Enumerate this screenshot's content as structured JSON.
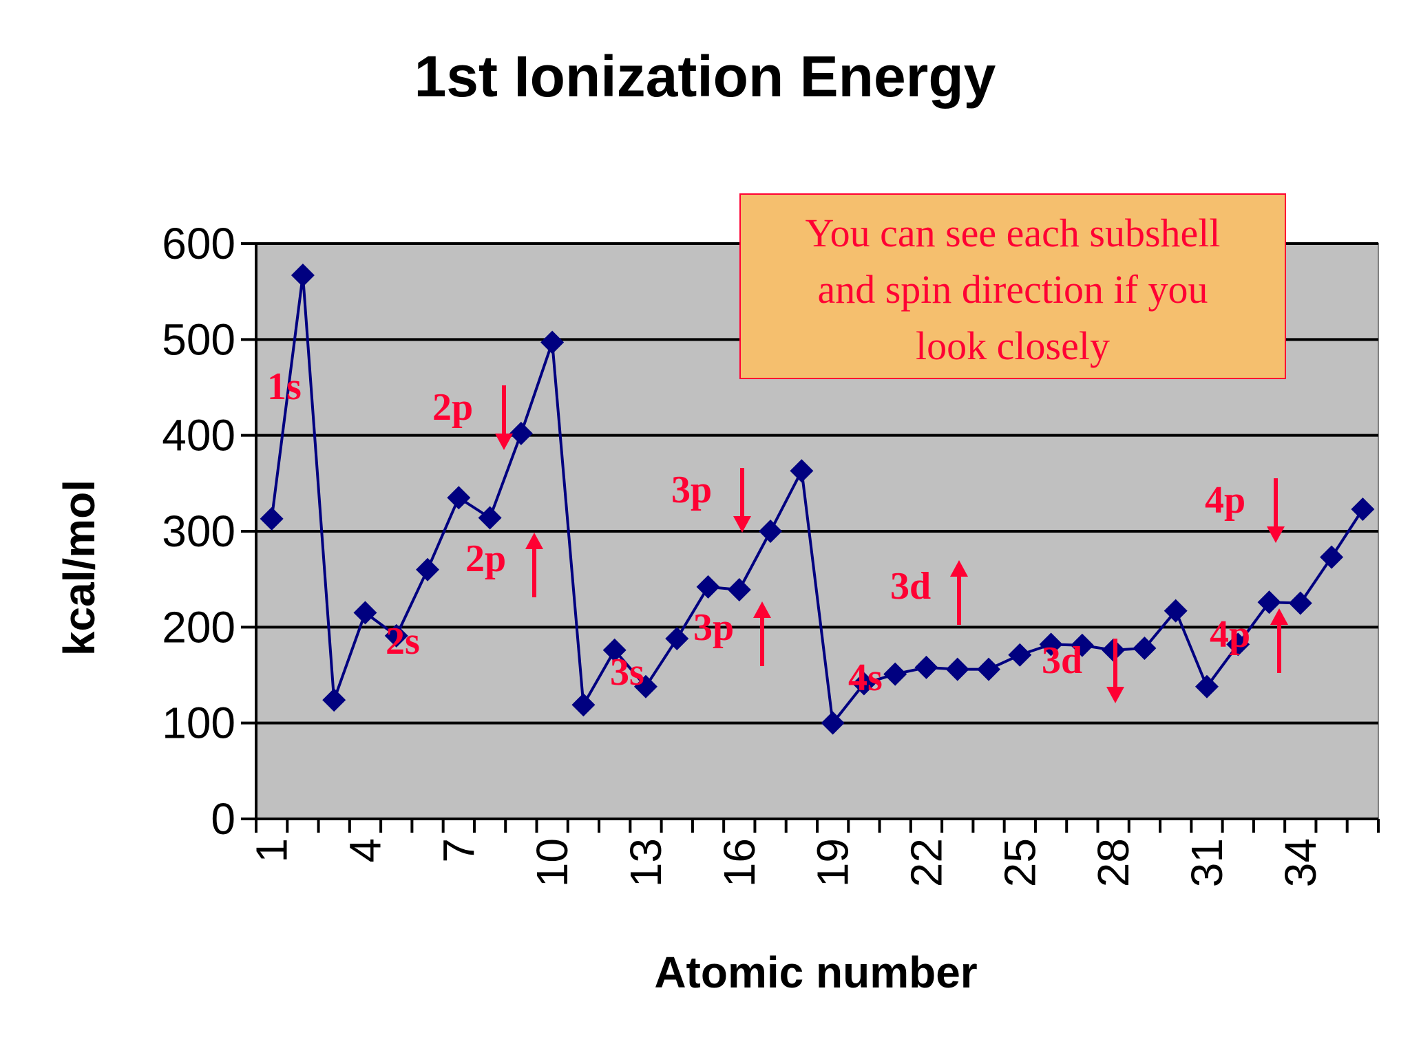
{
  "chart_data": {
    "type": "line",
    "title": "1st Ionization Energy",
    "xlabel": "Atomic number",
    "ylabel": "kcal/mol",
    "ylim": [
      0,
      600
    ],
    "yticks": [
      0,
      100,
      200,
      300,
      400,
      500,
      600
    ],
    "xticks": [
      "1",
      "4",
      "7",
      "10",
      "13",
      "16",
      "19",
      "22",
      "25",
      "28",
      "31",
      "34"
    ],
    "xlim": [
      1,
      36
    ],
    "grid": true,
    "x": [
      1,
      2,
      3,
      4,
      5,
      6,
      7,
      8,
      9,
      10,
      11,
      12,
      13,
      14,
      15,
      16,
      17,
      18,
      19,
      20,
      21,
      22,
      23,
      24,
      25,
      26,
      27,
      28,
      29,
      30,
      31,
      32,
      33,
      34,
      35,
      36
    ],
    "series": [
      {
        "values": [
          313,
          567,
          124,
          215,
          191,
          260,
          335,
          314,
          402,
          497,
          119,
          176,
          138,
          188,
          242,
          239,
          300,
          363,
          100,
          141,
          151,
          158,
          156,
          156,
          171,
          182,
          181,
          176,
          178,
          217,
          138,
          182,
          226,
          225,
          273,
          323
        ]
      }
    ],
    "annotations": [
      {
        "text": "1s"
      },
      {
        "text": "2s"
      },
      {
        "text": "2p",
        "arrow": "down"
      },
      {
        "text": "2p",
        "arrow": "up"
      },
      {
        "text": "3s"
      },
      {
        "text": "3p",
        "arrow": "down"
      },
      {
        "text": "3p",
        "arrow": "up"
      },
      {
        "text": "4s"
      },
      {
        "text": "3d",
        "arrow": "up"
      },
      {
        "text": "3d",
        "arrow": "down"
      },
      {
        "text": "4p",
        "arrow": "down"
      },
      {
        "text": "4p",
        "arrow": "up"
      }
    ],
    "note": [
      "You can see each subshell",
      "and spin direction if you",
      "look closely"
    ],
    "colors": {
      "line": "#000080",
      "marker": "#000080",
      "plot_background": "#c0c0c0",
      "gridline": "#000000",
      "annotation": "#ff0033",
      "note_background": "#f5bf6e",
      "note_border": "#ff0033"
    }
  }
}
